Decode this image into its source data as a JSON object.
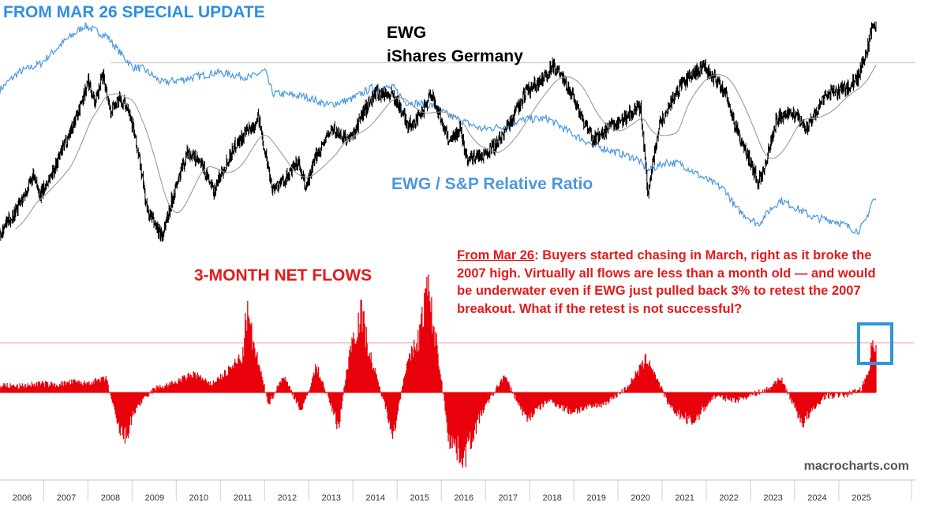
{
  "header": {
    "title": "FROM MAR 26 SPECIAL UPDATE"
  },
  "labels": {
    "ewg_line1": "EWG",
    "ewg_line2": "iShares Germany",
    "ratio": "EWG / S&P Relative Ratio",
    "flows": "3-MONTH NET FLOWS",
    "watermark": "macrocharts.com"
  },
  "annotation": {
    "date_label": "From Mar 26",
    "body": ": Buyers started chasing in March, right as it broke the 2007 high. Virtually all flows are less than a month old — and would be underwater even if EWG just pulled back 3% to retest the 2007 breakout. What if the retest is not successful?"
  },
  "colors": {
    "header": "#2f8fe0",
    "ewg_price": "#000000",
    "moving_average": "#9a9a9a",
    "ratio": "#4a98e0",
    "flows": "#e8000b",
    "flows_label": "#e41a1a",
    "reference_line": "#f2a8b4",
    "highlight_box": "#2a97dc"
  },
  "chart_data": [
    {
      "type": "line",
      "panel": "top",
      "x_axis": "date",
      "series": [
        {
          "name": "EWG",
          "style": "black-bars",
          "points": [
            [
              "2005-06",
              12.0
            ],
            [
              "2005-10",
              14.5
            ],
            [
              "2006-01",
              17.0
            ],
            [
              "2006-04",
              20.0
            ],
            [
              "2006-06",
              17.5
            ],
            [
              "2006-10",
              21.5
            ],
            [
              "2007-01",
              25.0
            ],
            [
              "2007-04",
              28.5
            ],
            [
              "2007-07",
              33.0
            ],
            [
              "2007-09",
              30.0
            ],
            [
              "2007-11",
              34.0
            ],
            [
              "2008-01",
              29.0
            ],
            [
              "2008-03",
              30.5
            ],
            [
              "2008-06",
              29.5
            ],
            [
              "2008-09",
              22.0
            ],
            [
              "2008-11",
              15.5
            ],
            [
              "2009-03",
              12.0
            ],
            [
              "2009-06",
              17.5
            ],
            [
              "2009-10",
              23.5
            ],
            [
              "2010-02",
              21.5
            ],
            [
              "2010-05",
              18.0
            ],
            [
              "2010-07",
              20.5
            ],
            [
              "2010-11",
              24.5
            ],
            [
              "2011-04",
              27.0
            ],
            [
              "2011-05",
              28.5
            ],
            [
              "2011-09",
              18.5
            ],
            [
              "2011-12",
              19.5
            ],
            [
              "2012-04",
              22.0
            ],
            [
              "2012-06",
              18.5
            ],
            [
              "2012-09",
              23.0
            ],
            [
              "2013-01",
              26.5
            ],
            [
              "2013-06",
              25.0
            ],
            [
              "2013-10",
              29.0
            ],
            [
              "2014-01",
              31.5
            ],
            [
              "2014-06",
              31.0
            ],
            [
              "2014-10",
              27.0
            ],
            [
              "2015-01",
              28.0
            ],
            [
              "2015-04",
              31.5
            ],
            [
              "2015-09",
              25.0
            ],
            [
              "2015-12",
              26.5
            ],
            [
              "2016-02",
              22.5
            ],
            [
              "2016-06",
              23.0
            ],
            [
              "2016-10",
              24.5
            ],
            [
              "2017-01",
              27.0
            ],
            [
              "2017-06",
              31.5
            ],
            [
              "2017-12",
              34.0
            ],
            [
              "2018-01",
              35.5
            ],
            [
              "2018-06",
              31.5
            ],
            [
              "2018-12",
              25.0
            ],
            [
              "2019-07",
              27.5
            ],
            [
              "2020-01",
              29.5
            ],
            [
              "2020-03",
              18.0
            ],
            [
              "2020-06",
              27.0
            ],
            [
              "2020-12",
              32.5
            ],
            [
              "2021-06",
              35.0
            ],
            [
              "2021-09",
              33.5
            ],
            [
              "2021-12",
              31.5
            ],
            [
              "2022-03",
              26.5
            ],
            [
              "2022-09",
              19.5
            ],
            [
              "2022-10",
              20.0
            ],
            [
              "2023-02",
              28.0
            ],
            [
              "2023-06",
              29.0
            ],
            [
              "2023-10",
              26.5
            ],
            [
              "2024-03",
              31.0
            ],
            [
              "2024-09",
              32.0
            ],
            [
              "2024-12",
              33.5
            ],
            [
              "2025-03",
              38.0
            ],
            [
              "2025-04",
              40.5
            ]
          ]
        },
        {
          "name": "EWG / S&P Relative Ratio",
          "style": "blue-line",
          "points": [
            [
              "2005-06",
              0.0193
            ],
            [
              "2005-12",
              0.0205
            ],
            [
              "2006-06",
              0.021
            ],
            [
              "2006-12",
              0.0222
            ],
            [
              "2007-06",
              0.0232
            ],
            [
              "2007-12",
              0.0226
            ],
            [
              "2008-03",
              0.0218
            ],
            [
              "2008-07",
              0.0208
            ],
            [
              "2008-10",
              0.0207
            ],
            [
              "2009-03",
              0.0199
            ],
            [
              "2009-09",
              0.0201
            ],
            [
              "2010-06",
              0.0205
            ],
            [
              "2011-03",
              0.0202
            ],
            [
              "2011-07",
              0.0206
            ],
            [
              "2011-09",
              0.0193
            ],
            [
              "2012-06",
              0.0191
            ],
            [
              "2012-12",
              0.0186
            ],
            [
              "2013-06",
              0.0189
            ],
            [
              "2013-12",
              0.0196
            ],
            [
              "2014-06",
              0.0196
            ],
            [
              "2014-09",
              0.0188
            ],
            [
              "2015-04",
              0.0186
            ],
            [
              "2015-09",
              0.018
            ],
            [
              "2016-06",
              0.0172
            ],
            [
              "2016-12",
              0.0174
            ],
            [
              "2017-06",
              0.0178
            ],
            [
              "2017-12",
              0.0178
            ],
            [
              "2018-06",
              0.017
            ],
            [
              "2018-12",
              0.0163
            ],
            [
              "2019-06",
              0.0159
            ],
            [
              "2019-12",
              0.0155
            ],
            [
              "2020-03",
              0.0148
            ],
            [
              "2020-08",
              0.0153
            ],
            [
              "2020-12",
              0.0152
            ],
            [
              "2021-06",
              0.0144
            ],
            [
              "2021-12",
              0.0137
            ],
            [
              "2022-03",
              0.0126
            ],
            [
              "2022-09",
              0.0117
            ],
            [
              "2022-12",
              0.0125
            ],
            [
              "2023-03",
              0.0131
            ],
            [
              "2023-06",
              0.0128
            ],
            [
              "2023-12",
              0.0121
            ],
            [
              "2024-06",
              0.0119
            ],
            [
              "2024-09",
              0.0116
            ],
            [
              "2024-12",
              0.0113
            ],
            [
              "2025-02",
              0.0118
            ],
            [
              "2025-04",
              0.0131
            ]
          ]
        }
      ],
      "moving_average": "smoothed EWG trend (grey)",
      "reference_line": {
        "label": "2007 high",
        "value": 35.5
      }
    },
    {
      "type": "area",
      "panel": "bottom",
      "title": "3-MONTH NET FLOWS",
      "x_axis": "date",
      "series": [
        {
          "name": "3-MONTH NET FLOWS",
          "points": [
            [
              "2005-06",
              0.1
            ],
            [
              "2005-12",
              0.08
            ],
            [
              "2006-06",
              0.12
            ],
            [
              "2006-10",
              0.1
            ],
            [
              "2007-03",
              0.14
            ],
            [
              "2007-06",
              0.12
            ],
            [
              "2007-12",
              0.18
            ],
            [
              "2008-03",
              -0.45
            ],
            [
              "2008-05",
              -0.6
            ],
            [
              "2008-08",
              -0.2
            ],
            [
              "2009-01",
              0.05
            ],
            [
              "2009-06",
              0.12
            ],
            [
              "2009-12",
              0.25
            ],
            [
              "2010-04",
              0.1
            ],
            [
              "2010-09",
              0.28
            ],
            [
              "2011-01",
              0.48
            ],
            [
              "2011-02",
              1.05
            ],
            [
              "2011-04",
              0.6
            ],
            [
              "2011-08",
              -0.15
            ],
            [
              "2011-12",
              0.22
            ],
            [
              "2012-05",
              -0.25
            ],
            [
              "2012-09",
              0.35
            ],
            [
              "2013-03",
              -0.45
            ],
            [
              "2013-06",
              0.55
            ],
            [
              "2013-09",
              1.05
            ],
            [
              "2013-12",
              0.4
            ],
            [
              "2014-06",
              -0.55
            ],
            [
              "2014-09",
              0.28
            ],
            [
              "2015-01",
              0.75
            ],
            [
              "2015-03",
              1.4
            ],
            [
              "2015-06",
              0.5
            ],
            [
              "2015-09",
              -0.6
            ],
            [
              "2016-01",
              -0.85
            ],
            [
              "2016-06",
              -0.25
            ],
            [
              "2016-12",
              0.22
            ],
            [
              "2017-06",
              -0.35
            ],
            [
              "2017-12",
              -0.1
            ],
            [
              "2018-06",
              -0.25
            ],
            [
              "2019-03",
              -0.15
            ],
            [
              "2019-09",
              0.05
            ],
            [
              "2020-03",
              0.45
            ],
            [
              "2020-09",
              -0.2
            ],
            [
              "2021-03",
              -0.4
            ],
            [
              "2021-09",
              -0.05
            ],
            [
              "2022-03",
              -0.1
            ],
            [
              "2022-06",
              -0.05
            ],
            [
              "2022-12",
              0.05
            ],
            [
              "2023-03",
              0.2
            ],
            [
              "2023-09",
              -0.4
            ],
            [
              "2024-03",
              -0.05
            ],
            [
              "2024-09",
              -0.03
            ],
            [
              "2025-01",
              0.05
            ],
            [
              "2025-03",
              0.3
            ],
            [
              "2025-04",
              0.65
            ]
          ]
        }
      ],
      "reference_line_value": 0.65,
      "highlight": "latest flows spike (blue box)"
    }
  ],
  "x_axis": {
    "ticks": [
      "2006",
      "2007",
      "2008",
      "2009",
      "2010",
      "2011",
      "2012",
      "2013",
      "2014",
      "2015",
      "2016",
      "2017",
      "2018",
      "2019",
      "2020",
      "2021",
      "2022",
      "2023",
      "2024",
      "2025"
    ]
  }
}
